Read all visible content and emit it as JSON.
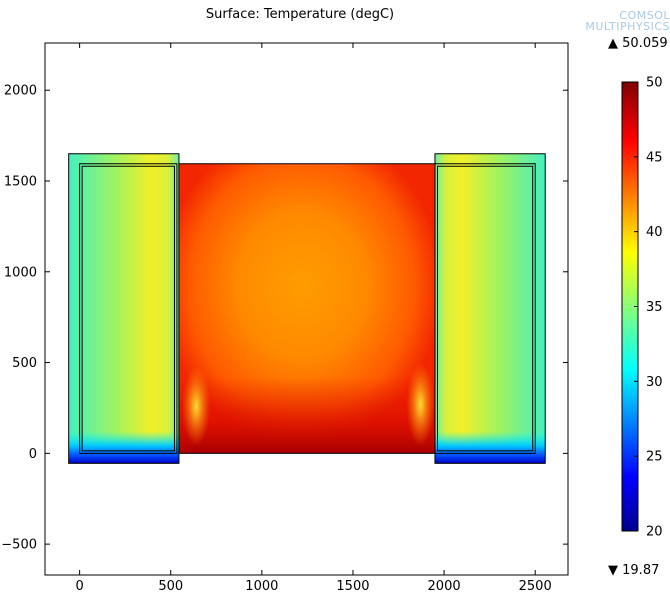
{
  "plot": {
    "title": "Surface: Temperature (degC)",
    "watermark_line1": "COMSOL",
    "watermark_line2": "MULTIPHYSICS"
  },
  "colorbar": {
    "max_value": "50.059",
    "min_value": "19.87",
    "max_marker": "▲",
    "min_marker": "▼"
  },
  "chart_data": {
    "type": "heatmap",
    "title": "Surface: Temperature (degC)",
    "xlabel": "",
    "ylabel": "",
    "xlim": [
      -190,
      2680
    ],
    "ylim": [
      -670,
      2260
    ],
    "x_ticks": [
      0,
      500,
      1000,
      1500,
      2000,
      2500
    ],
    "y_ticks": [
      -500,
      0,
      500,
      1000,
      1500,
      2000
    ],
    "grid": false,
    "colormap": "jet",
    "color_range": [
      20,
      50
    ],
    "colorbar_ticks": [
      20,
      25,
      30,
      35,
      40,
      45,
      50
    ],
    "data_max": 50.059,
    "data_min": 19.87,
    "regions": [
      {
        "name": "left-block",
        "x_range": [
          -60,
          545
        ],
        "y_range": [
          -55,
          1650
        ],
        "temperature_range": [
          20,
          38
        ]
      },
      {
        "name": "central-cavity",
        "x_range": [
          545,
          1950
        ],
        "y_range": [
          0,
          1595
        ],
        "temperature_range": [
          40,
          50
        ]
      },
      {
        "name": "right-block",
        "x_range": [
          1950,
          2555
        ],
        "y_range": [
          -55,
          1650
        ],
        "temperature_range": [
          20,
          38
        ]
      }
    ]
  }
}
